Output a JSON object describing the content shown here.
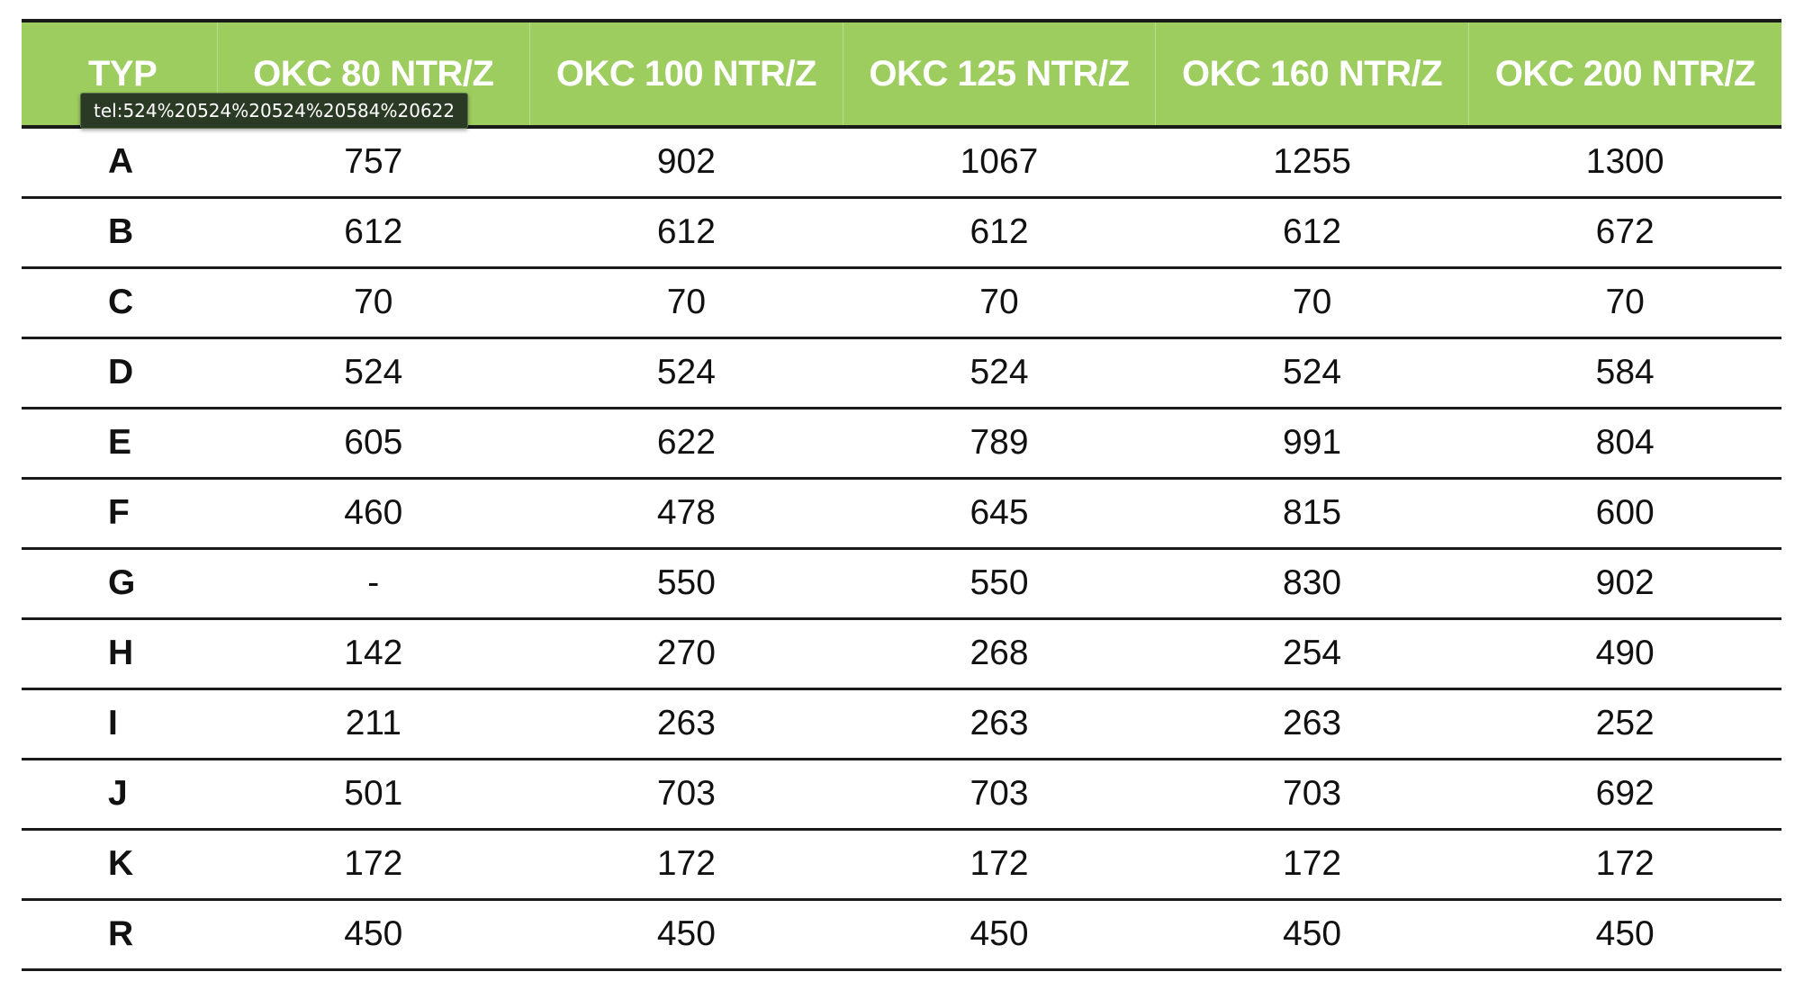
{
  "table": {
    "header_color": "#9dcc5f",
    "headers": [
      "TYP",
      "OKC 80 NTR/Z",
      "OKC 100 NTR/Z",
      "OKC 125 NTR/Z",
      "OKC 160 NTR/Z",
      "OKC 200 NTR/Z"
    ],
    "rows": [
      {
        "label": "A",
        "values": [
          "757",
          "902",
          "1067",
          "1255",
          "1300"
        ]
      },
      {
        "label": "B",
        "values": [
          "612",
          "612",
          "612",
          "612",
          "672"
        ]
      },
      {
        "label": "C",
        "values": [
          "70",
          "70",
          "70",
          "70",
          "70"
        ]
      },
      {
        "label": "D",
        "values": [
          "524",
          "524",
          "524",
          "524",
          "584"
        ]
      },
      {
        "label": "E",
        "values": [
          "605",
          "622",
          "789",
          "991",
          "804"
        ]
      },
      {
        "label": "F",
        "values": [
          "460",
          "478",
          "645",
          "815",
          "600"
        ]
      },
      {
        "label": "G",
        "values": [
          "-",
          "550",
          "550",
          "830",
          "902"
        ]
      },
      {
        "label": "H",
        "values": [
          "142",
          "270",
          "268",
          "254",
          "490"
        ]
      },
      {
        "label": "I",
        "values": [
          "211",
          "263",
          "263",
          "263",
          "252"
        ]
      },
      {
        "label": "J",
        "values": [
          "501",
          "703",
          "703",
          "703",
          "692"
        ]
      },
      {
        "label": "K",
        "values": [
          "172",
          "172",
          "172",
          "172",
          "172"
        ]
      },
      {
        "label": "R",
        "values": [
          "450",
          "450",
          "450",
          "450",
          "450"
        ]
      }
    ]
  },
  "tooltip": {
    "text": "tel:524%20524%20524%20584%20622"
  }
}
